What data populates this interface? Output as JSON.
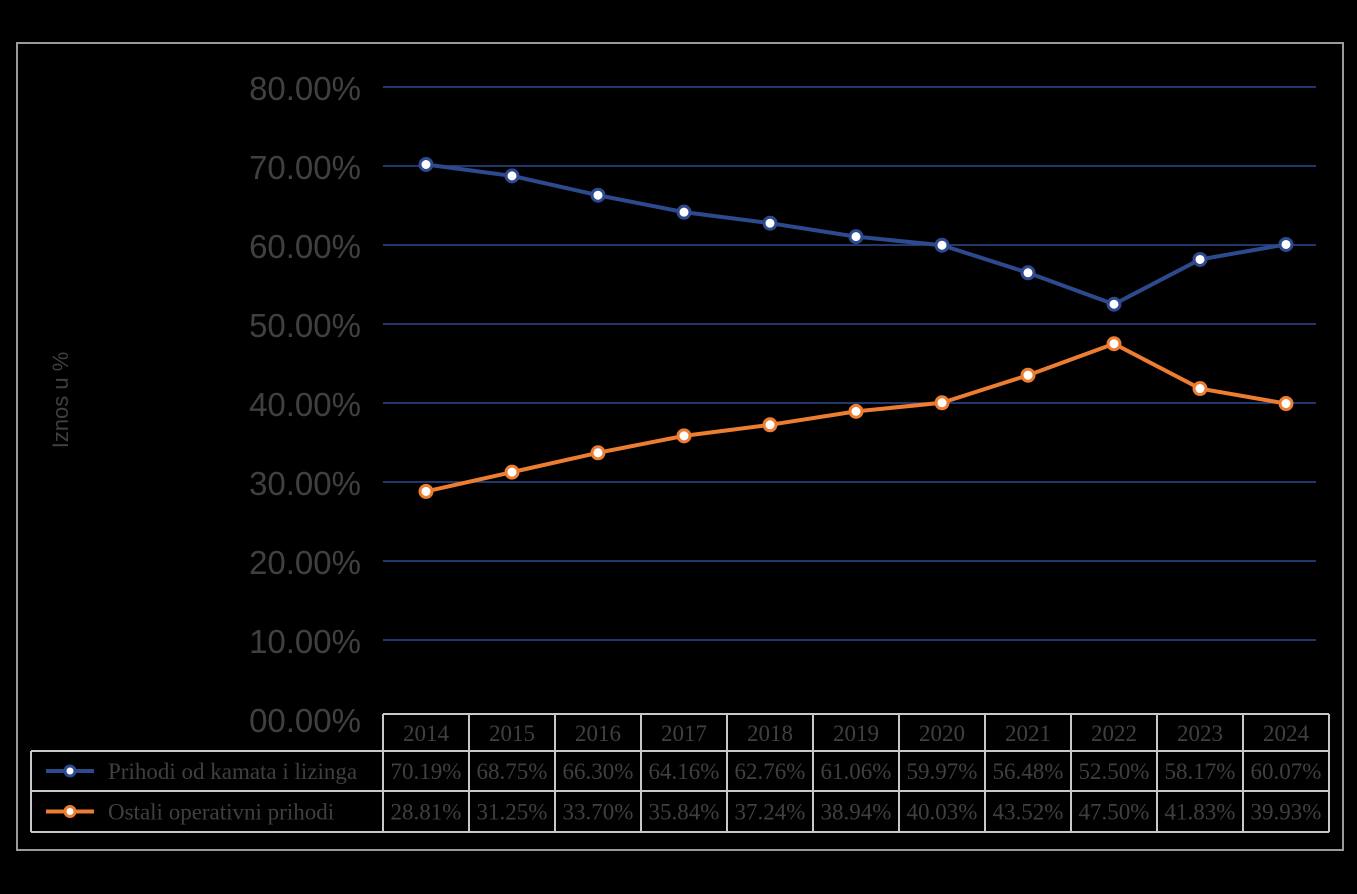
{
  "chart_data": {
    "type": "line",
    "ylabel": "Iznos u %",
    "ylim": [
      0,
      80
    ],
    "yticks": [
      0,
      10,
      20,
      30,
      40,
      50,
      60,
      70,
      80
    ],
    "ytick_labels": [
      "00.00%",
      "10.00%",
      "20.00%",
      "30.00%",
      "40.00%",
      "50.00%",
      "60.00%",
      "70.00%",
      "80.00%"
    ],
    "categories": [
      "2014",
      "2015",
      "2016",
      "2017",
      "2018",
      "2019",
      "2020",
      "2021",
      "2022",
      "2023",
      "2024"
    ],
    "grid": true,
    "legend": "data-table",
    "series": [
      {
        "name": "Prihodi od kamata i lizinga",
        "color": "#2e4a8f",
        "values": [
          70.19,
          68.75,
          66.3,
          64.16,
          62.76,
          61.06,
          59.97,
          56.48,
          52.5,
          58.17,
          60.07
        ],
        "labels": [
          "70.19%",
          "68.75%",
          "66.30%",
          "64.16%",
          "62.76%",
          "61.06%",
          "59.97%",
          "56.48%",
          "52.50%",
          "58.17%",
          "60.07%"
        ]
      },
      {
        "name": "Ostali operativni prihodi",
        "color": "#ed7d31",
        "values": [
          28.81,
          31.25,
          33.7,
          35.84,
          37.24,
          38.94,
          40.03,
          43.52,
          47.5,
          41.83,
          39.93
        ],
        "labels": [
          "28.81%",
          "31.25%",
          "33.70%",
          "35.84%",
          "37.24%",
          "38.94%",
          "40.03%",
          "43.52%",
          "47.50%",
          "41.83%",
          "39.93%"
        ]
      }
    ]
  },
  "colors": {
    "background": "#000000",
    "gridline": "#2e4a8f",
    "axis_text": "#404040",
    "table_border": "#c8c8c8"
  }
}
